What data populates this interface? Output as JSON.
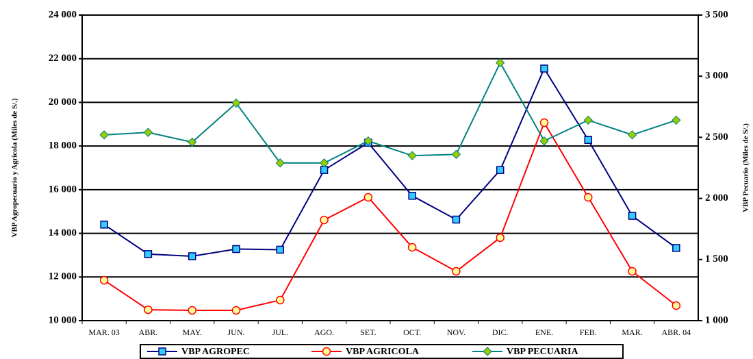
{
  "chart_data": {
    "type": "line",
    "categories": [
      "MAR. 03",
      "ABR.",
      "MAY.",
      "JUN.",
      "JUL.",
      "AGO.",
      "SET.",
      "OCT.",
      "NOV.",
      "DIC.",
      "ENE.",
      "FEB.",
      "MAR.",
      "ABR. 04"
    ],
    "y_label": "VBP Agropecuario y Agricola (Miles de S/.)",
    "y2_label": "VBP Pecuario (Miles de S/.)",
    "ylim": [
      10000,
      24000
    ],
    "yticks": [
      {
        "value": 10000,
        "label": "10 000"
      },
      {
        "value": 12000,
        "label": "12 000"
      },
      {
        "value": 14000,
        "label": "14 000"
      },
      {
        "value": 16000,
        "label": "16 000"
      },
      {
        "value": 18000,
        "label": "18 000"
      },
      {
        "value": 20000,
        "label": "20 000"
      },
      {
        "value": 22000,
        "label": "22 000"
      },
      {
        "value": 24000,
        "label": "24 000"
      }
    ],
    "y2lim": [
      1000,
      3500
    ],
    "y2ticks": [
      {
        "value": 1000,
        "label": "1 000"
      },
      {
        "value": 1500,
        "label": "1 500"
      },
      {
        "value": 2000,
        "label": "2 000"
      },
      {
        "value": 2500,
        "label": "2 500"
      },
      {
        "value": 3000,
        "label": "3 000"
      },
      {
        "value": 3500,
        "label": "3 500"
      }
    ],
    "grid": true,
    "legend": "bottom",
    "series": [
      {
        "name": "VBP AGROPEC",
        "color": "#000080",
        "marker": "square",
        "marker_fill": "#33ccff",
        "values": [
          14400,
          13050,
          12950,
          13280,
          13250,
          16900,
          18150,
          15720,
          14630,
          16900,
          21550,
          18280,
          14800,
          13330
        ]
      },
      {
        "name": "VBP AGRICOLA",
        "color": "#ff0000",
        "marker": "circle",
        "marker_fill": "#ffff99",
        "values": [
          11850,
          10500,
          10470,
          10470,
          10940,
          14610,
          15650,
          13360,
          12260,
          13800,
          19070,
          15650,
          12260,
          10690
        ]
      },
      {
        "name": "VBP PECUARIA",
        "color": "#008080",
        "marker": "diamond",
        "marker_fill": "#99cc00",
        "axis": "y2",
        "values": [
          2520,
          2540,
          2460,
          2780,
          2290,
          2290,
          2470,
          2350,
          2360,
          3110,
          2470,
          2640,
          2520,
          2640
        ]
      }
    ]
  }
}
